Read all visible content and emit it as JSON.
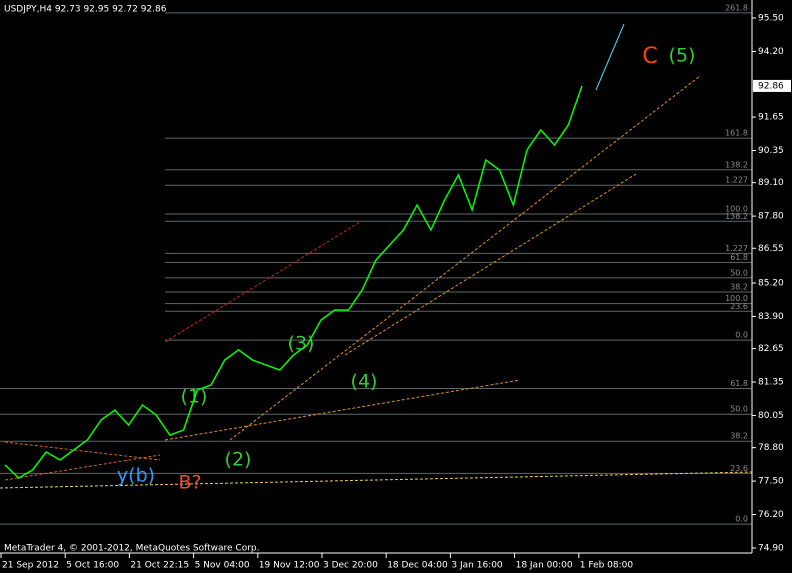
{
  "chart_data": {
    "type": "line",
    "title": "USDJPY,H4  92.73 92.95 92.72 92.86",
    "footer": "MetaTrader 4, © 2001-2012, MetaQuotes Software Corp.",
    "color": "#00ff00",
    "values": [
      78.13,
      77.62,
      77.93,
      78.63,
      78.32,
      78.71,
      79.1,
      79.88,
      80.26,
      79.68,
      80.46,
      80.07,
      79.29,
      79.49,
      81.04,
      81.24,
      82.21,
      82.6,
      82.21,
      82.01,
      81.82,
      82.4,
      82.79,
      83.76,
      84.15,
      84.15,
      84.93,
      86.09,
      86.68,
      87.26,
      88.23,
      87.26,
      88.43,
      89.4,
      88.04,
      89.98,
      89.59,
      88.23,
      90.37,
      91.15,
      90.56,
      91.34,
      92.86
    ],
    "x_labels": [
      "21 Sep 2012",
      "5 Oct 16:00",
      "21 Oct 22:15",
      "5 Nov 04:00",
      "19 Nov 12:00",
      "3 Dec 20:00",
      "18 Dec 04:00",
      "3 Jan 16:00",
      "18 Jan 00:00",
      "1 Feb 08:00"
    ],
    "ylim": [
      74.9,
      95.5
    ],
    "yticks": [
      {
        "value": 95.5,
        "label": "95.50"
      },
      {
        "value": 94.2,
        "label": "94.20"
      },
      91.65,
      90.35,
      {
        "value": 89.1,
        "label": "89.10"
      },
      {
        "value": 87.8,
        "label": "87.80"
      },
      86.55,
      {
        "value": 85.2,
        "label": "85.20"
      },
      {
        "value": 83.9,
        "label": "83.90"
      },
      82.65,
      81.35,
      80.05,
      {
        "value": 78.8,
        "label": "78.80"
      },
      {
        "value": 77.5,
        "label": "77.50"
      },
      {
        "value": 76.2,
        "label": "76.20"
      },
      {
        "value": 74.9,
        "label": "74.90"
      }
    ],
    "current_price": 92.86,
    "fib_levels": [
      {
        "label": "261.8",
        "price": 95.7
      },
      {
        "label": "161.8",
        "price": 90.83
      },
      {
        "label": "138.2",
        "price": 89.6
      },
      {
        "label": "1.227",
        "price": 89.0
      },
      {
        "label": "100.0",
        "price": 87.88
      },
      {
        "label": "138.2",
        "price": 87.6
      },
      {
        "label": "1.227",
        "price": 86.35
      },
      {
        "label": "61.8",
        "price": 86.0
      },
      {
        "label": "50.0",
        "price": 85.4
      },
      {
        "label": "38.2",
        "price": 84.85
      },
      {
        "label": "100.0",
        "price": 84.4
      },
      {
        "label": "23.6",
        "price": 84.1
      },
      {
        "label": "0.0",
        "price": 82.98
      },
      {
        "label": "61.8",
        "price": 81.1
      },
      {
        "label": "50.0",
        "price": 80.1
      },
      {
        "label": "38.2",
        "price": 79.05
      },
      {
        "label": "23.6",
        "price": 77.8
      },
      {
        "label": "0.0",
        "price": 75.83
      }
    ],
    "annotations": [
      "(1)",
      "(2)",
      "(3)",
      "(4)",
      "(5)",
      "C",
      "y(b)",
      "B?"
    ]
  }
}
